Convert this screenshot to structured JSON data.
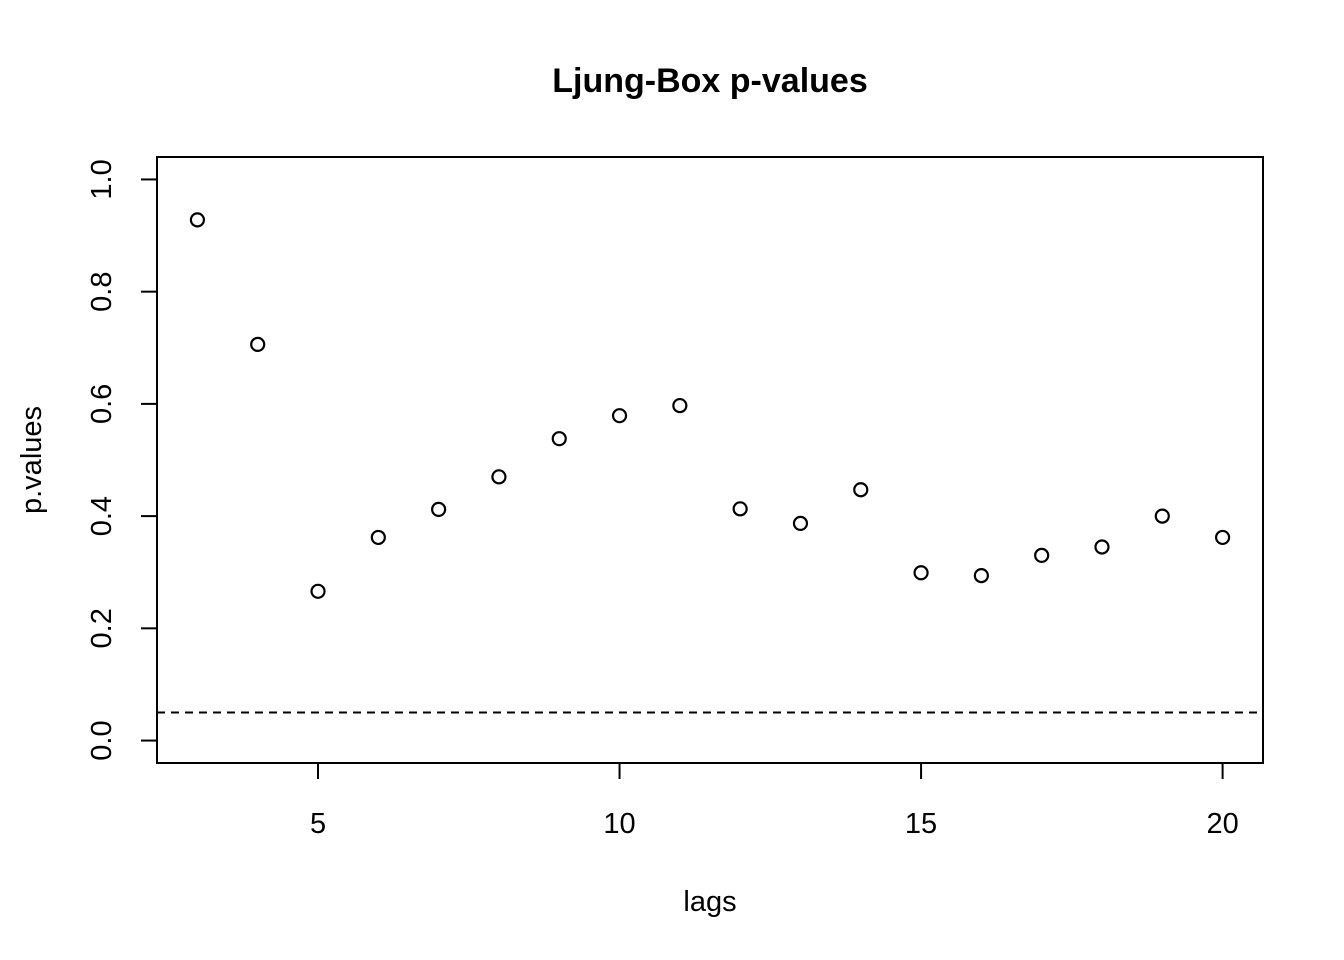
{
  "chart_data": {
    "type": "scatter",
    "title": "Ljung-Box p-values",
    "xlabel": "lags",
    "ylabel": "p.values",
    "xlim": [
      2.33,
      20.67
    ],
    "ylim": [
      -0.04,
      1.04
    ],
    "xticks": [
      5,
      10,
      15,
      20
    ],
    "xtick_labels": [
      "5",
      "10",
      "15",
      "20"
    ],
    "yticks": [
      0.0,
      0.2,
      0.4,
      0.6,
      0.8,
      1.0
    ],
    "ytick_labels": [
      "0.0",
      "0.2",
      "0.4",
      "0.6",
      "0.8",
      "1.0"
    ],
    "grid": false,
    "x": [
      3,
      4,
      5,
      6,
      7,
      8,
      9,
      10,
      11,
      12,
      13,
      14,
      15,
      16,
      17,
      18,
      19,
      20
    ],
    "y": [
      0.928,
      0.706,
      0.266,
      0.362,
      0.412,
      0.47,
      0.538,
      0.579,
      0.597,
      0.413,
      0.387,
      0.447,
      0.299,
      0.294,
      0.33,
      0.345,
      0.4,
      0.362
    ],
    "reference_line": {
      "y": 0.05,
      "style": "dashed"
    }
  }
}
